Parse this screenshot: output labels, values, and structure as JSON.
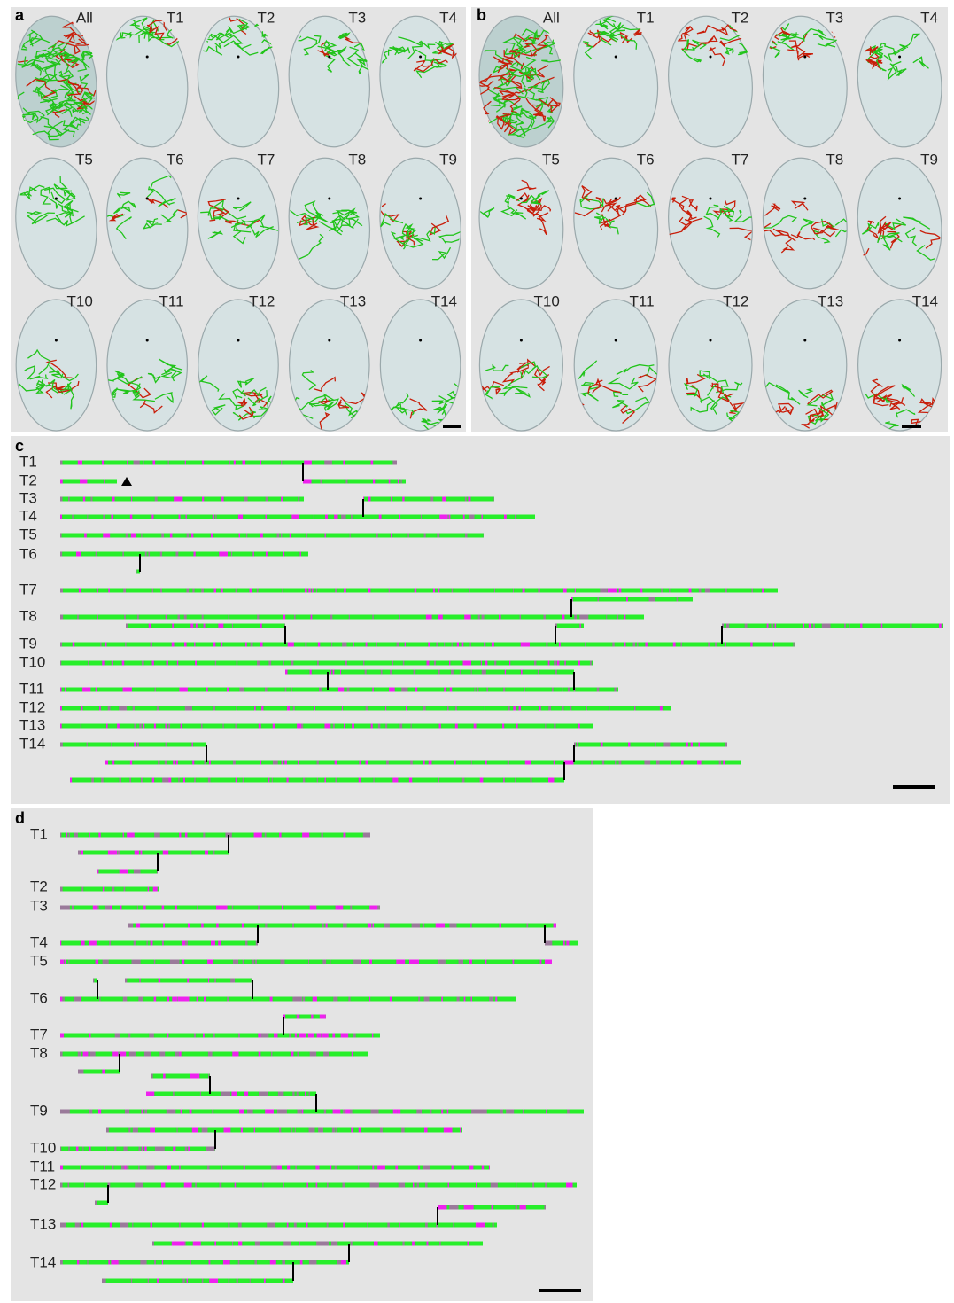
{
  "panels": {
    "a": {
      "label": "a",
      "cells": [
        "All",
        "T1",
        "T2",
        "T3",
        "T4",
        "T5",
        "T6",
        "T7",
        "T8",
        "T9",
        "T10",
        "T11",
        "T12",
        "T13",
        "T14"
      ]
    },
    "b": {
      "label": "b",
      "cells": [
        "All",
        "T1",
        "T2",
        "T3",
        "T4",
        "T5",
        "T6",
        "T7",
        "T8",
        "T9",
        "T10",
        "T11",
        "T12",
        "T13",
        "T14"
      ]
    },
    "c": {
      "label": "c",
      "rows": [
        "T1",
        "T2",
        "T3",
        "T4",
        "T5",
        "T6",
        "T7",
        "T8",
        "T9",
        "T10",
        "T11",
        "T12",
        "T13",
        "T14"
      ]
    },
    "d": {
      "label": "d",
      "rows": [
        "T1",
        "T2",
        "T3",
        "T4",
        "T5",
        "T6",
        "T7",
        "T8",
        "T9",
        "T10",
        "T11",
        "T12",
        "T13",
        "T14"
      ]
    }
  }
}
